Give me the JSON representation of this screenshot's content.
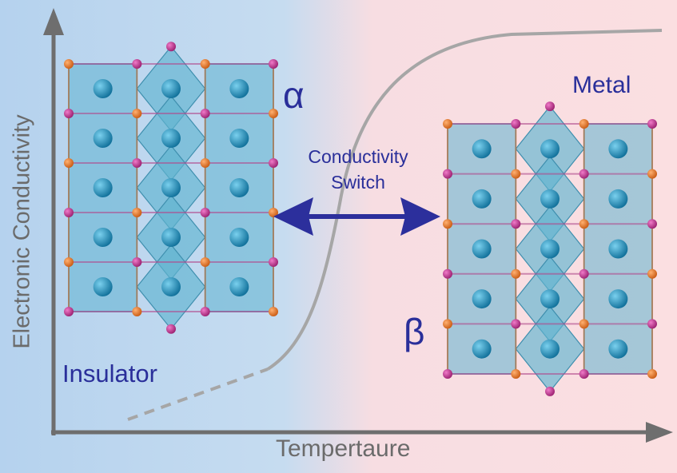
{
  "axes": {
    "y_label": "Electronic Conductivity",
    "x_label": "Tempertaure"
  },
  "phases": {
    "alpha_symbol": "α",
    "beta_symbol": "β",
    "low_state": "Insulator",
    "high_state": "Metal"
  },
  "switch": {
    "line1": "Conductivity",
    "line2": "Switch"
  },
  "colors": {
    "background_left": "#b9d5ef",
    "background_right": "#fadde0",
    "axis": "#6e6e6e",
    "curve": "#a9a9a9",
    "label_text": "#2a2f9a",
    "arrow": "#2c2f9c",
    "octahedron_fill": "#5fb3cf",
    "cation_atom": "#1f8db8",
    "anion_atom_orange": "#e07a2a",
    "anion_atom_magenta": "#c0398f"
  }
}
